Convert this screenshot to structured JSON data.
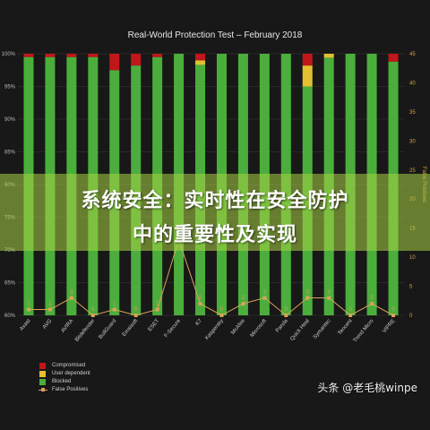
{
  "chart_data": {
    "type": "bar",
    "title": "Real-World Protection Test – February 2018",
    "categories": [
      "Avast",
      "AVG",
      "AVIRA",
      "Bitdefender",
      "BullGuard",
      "Emsisoft",
      "ESET",
      "F-Secure",
      "K7",
      "Kaspersky",
      "McAfee",
      "Microsoft",
      "Panda",
      "Quick Heal",
      "Symantec",
      "Tencent",
      "Trend Micro",
      "VIPRE"
    ],
    "y_left": {
      "min": 60,
      "max": 100,
      "ticks": [
        "60%",
        "65%",
        "70%",
        "75%",
        "80%",
        "85%",
        "90%",
        "95%",
        "100%"
      ]
    },
    "y_right": {
      "min": 0,
      "max": 45,
      "ticks": [
        "0",
        "5",
        "10",
        "15",
        "20",
        "25",
        "30",
        "35",
        "40",
        "45"
      ]
    },
    "series": [
      {
        "name": "Compromised",
        "color": "#c0171b",
        "values": [
          0.5,
          0.5,
          0.5,
          0.5,
          2.5,
          1.8,
          0.5,
          0,
          1.0,
          0,
          0,
          0,
          0,
          1.8,
          0,
          0,
          0,
          1.2
        ]
      },
      {
        "name": "User dependent",
        "color": "#e2c030",
        "values": [
          0,
          0,
          0,
          0,
          0,
          0,
          0,
          0,
          0.7,
          0,
          0,
          0,
          0,
          3.2,
          0.6,
          0,
          0,
          0
        ]
      },
      {
        "name": "Blocked",
        "color": "#4bae3c",
        "values": [
          99.5,
          99.5,
          99.5,
          99.5,
          97.5,
          98.2,
          99.5,
          100,
          98.3,
          100,
          100,
          100,
          100,
          95.0,
          99.4,
          100,
          100,
          98.8
        ]
      },
      {
        "name": "False Positives",
        "color": "#dba258",
        "axis": "right",
        "values": [
          1,
          1,
          3,
          0,
          1,
          0,
          1,
          13,
          2,
          0,
          2,
          3,
          0,
          3,
          3,
          0,
          2,
          0
        ]
      }
    ],
    "legend_position": "bottom-left",
    "grid": true
  },
  "overlay": {
    "line1": "系统安全：实时性在安全防护",
    "line2": "中的重要性及实现"
  },
  "watermark": "头条 @老毛桃winpe",
  "colors": {
    "compromised": "#c0171b",
    "user_dependent": "#e2c030",
    "blocked": "#4bae3c",
    "false_positives": "#dba258",
    "background": "#181818",
    "grid": "#3a3a3a",
    "axis_text_left": "#b8b8b8",
    "axis_text_right": "#d4a24a"
  }
}
